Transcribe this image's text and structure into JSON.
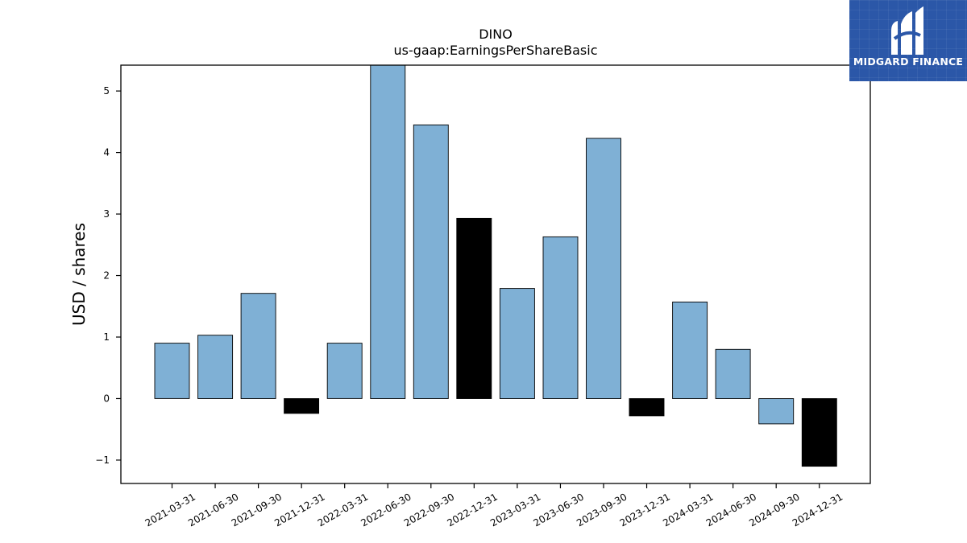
{
  "brand": {
    "name": "MIDGARD FINANCE",
    "background_color": "#2b57a8",
    "logo_icon": "midgard-m-logo-icon"
  },
  "chart_data": {
    "type": "bar",
    "title": "DINO",
    "subtitle": "us-gaap:EarningsPerShareBasic",
    "xlabel": "",
    "ylabel": "USD / shares",
    "ylim": [
      -1.38,
      5.42
    ],
    "yticks": [
      -1,
      0,
      1,
      2,
      3,
      4,
      5
    ],
    "ytick_labels": [
      "−1",
      "0",
      "1",
      "2",
      "3",
      "4",
      "5"
    ],
    "grid": false,
    "legend": "none",
    "colors": {
      "quarter": "#7fb0d5",
      "year_end": "#000000",
      "edge": "#000000"
    },
    "categories": [
      "2021-03-31",
      "2021-06-30",
      "2021-09-30",
      "2021-12-31",
      "2022-03-31",
      "2022-06-30",
      "2022-09-30",
      "2022-12-31",
      "2023-03-31",
      "2023-06-30",
      "2023-09-30",
      "2023-12-31",
      "2024-03-31",
      "2024-06-30",
      "2024-09-30",
      "2024-12-31"
    ],
    "values": [
      0.9,
      1.03,
      1.71,
      -0.24,
      0.9,
      5.42,
      4.45,
      2.93,
      1.79,
      2.63,
      4.23,
      -0.28,
      1.57,
      0.8,
      -0.41,
      -1.1
    ],
    "year_end_flags": [
      false,
      false,
      false,
      true,
      false,
      false,
      false,
      true,
      false,
      false,
      false,
      true,
      false,
      false,
      false,
      true
    ]
  }
}
